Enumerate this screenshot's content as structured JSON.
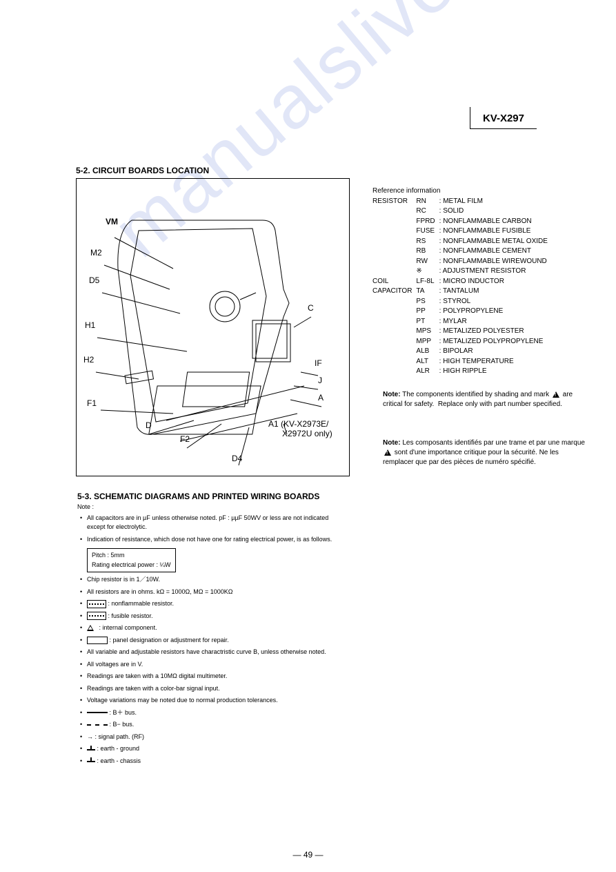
{
  "model": "KV-X297",
  "section52_title": "5-2. CIRCUIT BOARDS LOCATION",
  "section53_title": "5-3. SCHEMATIC DIAGRAMS AND PRINTED WIRING BOARDS",
  "diagram_labels": {
    "VM": "VM",
    "M2": "M2",
    "D5": "D5",
    "H1": "H1",
    "H2": "H2",
    "F1": "F1",
    "D": "D",
    "F2": "F2",
    "D4": "D4",
    "C": "C",
    "IF": "IF",
    "J": "J",
    "A": "A",
    "A1": "A1 (KV-X2973E/",
    "A1b": "X2972U only)"
  },
  "reference": {
    "title": "Reference information",
    "rows": [
      [
        "RESISTOR",
        "RN",
        ": METAL FILM"
      ],
      [
        "",
        "RC",
        ": SOLID"
      ],
      [
        "",
        "FPRD",
        ": NONFLAMMABLE CARBON"
      ],
      [
        "",
        "FUSE",
        ": NONFLAMMABLE FUSIBLE"
      ],
      [
        "",
        "RS",
        ": NONFLAMMABLE METAL OXIDE"
      ],
      [
        "",
        "RB",
        ": NONFLAMMABLE CEMENT"
      ],
      [
        "",
        "RW",
        ": NONFLAMMABLE WIREWOUND"
      ],
      [
        "",
        "※",
        ": ADJUSTMENT RESISTOR"
      ],
      [
        "COIL",
        "LF-8L",
        ": MICRO INDUCTOR"
      ],
      [
        "CAPACITOR",
        "TA",
        ": TANTALUM"
      ],
      [
        "",
        "PS",
        ": STYROL"
      ],
      [
        "",
        "PP",
        ": POLYPROPYLENE"
      ],
      [
        "",
        "PT",
        ": MYLAR"
      ],
      [
        "",
        "MPS",
        ": METALIZED POLYESTER"
      ],
      [
        "",
        "MPP",
        ": METALIZED POLYPROPYLENE"
      ],
      [
        "",
        "ALB",
        ": BIPOLAR"
      ],
      [
        "",
        "ALT",
        ": HIGH TEMPERATURE"
      ],
      [
        "",
        "ALR",
        ": HIGH RIPPLE"
      ]
    ]
  },
  "note_en": {
    "lead": "Note:",
    "body": "The components identified by shading and mark ⚠ are critical for safety. Replace only with part number specified."
  },
  "note_fr": {
    "lead": "Note:",
    "body": "Les composants identifiés par une trame et par une marque ⚠ sont d'une importance critique pour la sécurité. Ne les remplacer que par des pièces de numéro spécifié."
  },
  "notes": {
    "header": "Note :",
    "items": [
      "All capacitors are in µF unless otherwise noted. pF : µµF 50WV or less are not indicated except for electrolytic.",
      "Indication of resistance, which dose not have one for rating electrical power, is as follows.",
      "Chip resistor is in 1／10W.",
      "All resistors are in ohms. kΩ = 1000Ω, MΩ = 1000KΩ",
      ": nonflammable resistor.",
      ": fusible resistor.",
      ": internal component.",
      ": panel designation or adjustment for repair.",
      "All variable and adjustable resistors have charactristic curve B, unless otherwise noted.",
      "All voltages are in V.",
      "Readings are taken with a 10MΩ digital multimeter.",
      "Readings are taken with a color-bar signal input.",
      "Voltage variations may be noted due to normal production tolerances.",
      ": B＋ bus.",
      ": B− bus.",
      ": signal path. (RF)",
      ": earth - ground",
      ": earth - chassis"
    ],
    "pitch_box_l1": "Pitch : 5mm",
    "pitch_box_l2": "Rating electrical power : ¼W"
  },
  "page_number": "— 49 —",
  "watermark": "manualslive.co",
  "colors": {
    "text": "#000000",
    "bg": "#ffffff",
    "watermark": "rgba(120,140,220,0.22)"
  }
}
